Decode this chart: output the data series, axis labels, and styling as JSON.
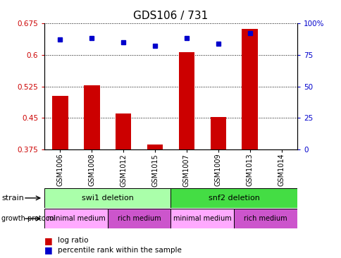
{
  "title": "GDS106 / 731",
  "samples": [
    "GSM1006",
    "GSM1008",
    "GSM1012",
    "GSM1015",
    "GSM1007",
    "GSM1009",
    "GSM1013",
    "GSM1014"
  ],
  "log_ratio": [
    0.502,
    0.528,
    0.46,
    0.388,
    0.607,
    0.452,
    0.662,
    0.375
  ],
  "percentile": [
    87,
    88,
    85,
    82,
    88,
    84,
    92,
    0
  ],
  "ylim_left": [
    0.375,
    0.675
  ],
  "ylim_right": [
    0,
    100
  ],
  "yticks_left": [
    0.375,
    0.45,
    0.525,
    0.6,
    0.675
  ],
  "yticks_right": [
    0,
    25,
    50,
    75,
    100
  ],
  "ytick_labels_left": [
    "0.375",
    "0.45",
    "0.525",
    "0.6",
    "0.675"
  ],
  "ytick_labels_right": [
    "0",
    "25",
    "50",
    "75",
    "100%"
  ],
  "bar_color": "#cc0000",
  "point_color": "#0000cc",
  "bar_bottom": 0.375,
  "strain_groups": [
    {
      "label": "swi1 deletion",
      "start": 0,
      "end": 4,
      "color": "#aaffaa"
    },
    {
      "label": "snf2 deletion",
      "start": 4,
      "end": 8,
      "color": "#44dd44"
    }
  ],
  "growth_groups": [
    {
      "label": "minimal medium",
      "start": 0,
      "end": 2,
      "color": "#ffaaff"
    },
    {
      "label": "rich medium",
      "start": 2,
      "end": 4,
      "color": "#cc55cc"
    },
    {
      "label": "minimal medium",
      "start": 4,
      "end": 6,
      "color": "#ffaaff"
    },
    {
      "label": "rich medium",
      "start": 6,
      "end": 8,
      "color": "#cc55cc"
    }
  ]
}
